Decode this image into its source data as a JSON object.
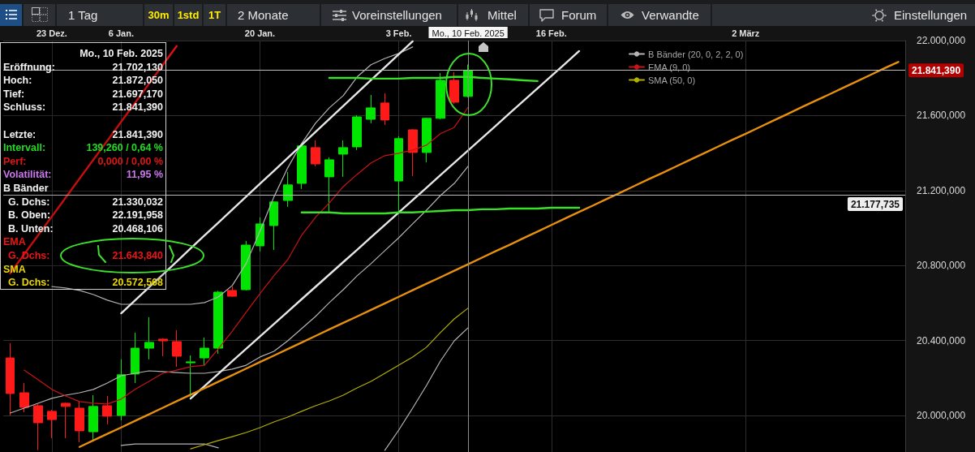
{
  "chart_data": [
    {
      "type": "other",
      "annotations": [
        "1 Tag",
        "30m",
        "1std",
        "1T",
        "2 Monate",
        "Voreinstellungen",
        "Mittel",
        "Forum",
        "Verwandte",
        "Einstellungen"
      ]
    },
    {
      "type": "candlestick",
      "categories": [
        null,
        null,
        null,
        "23 Dez.",
        null,
        null,
        null,
        null,
        "6 Jan.",
        null,
        null,
        null,
        null,
        null,
        null,
        null,
        null,
        null,
        "20 Jan.",
        null,
        null,
        null,
        null,
        null,
        null,
        null,
        null,
        null,
        "3 Feb.",
        null,
        null,
        null,
        null,
        null,
        null,
        null,
        null,
        null,
        null,
        "16 Feb.",
        null,
        null,
        null,
        null,
        null,
        null,
        null,
        null,
        null,
        null,
        null,
        null,
        null,
        "2 März",
        null,
        null,
        null,
        null,
        null,
        null,
        null,
        null,
        null,
        null,
        null
      ],
      "ohlc": [
        [
          20307,
          20385,
          20000,
          20117
        ],
        [
          20121,
          20173,
          20017,
          20043
        ],
        [
          20052,
          20060,
          19815,
          19961
        ],
        [
          20022,
          20030,
          19879,
          19978
        ],
        [
          20065,
          20068,
          19879,
          20048
        ],
        [
          20039,
          20074,
          19857,
          19918
        ],
        [
          19913,
          20108,
          19866,
          20048
        ],
        [
          20052,
          20104,
          19952,
          19996
        ],
        [
          20000,
          20299,
          19974,
          20217
        ],
        [
          20221,
          20442,
          20173,
          20359
        ],
        [
          20359,
          20524,
          20299,
          20390
        ],
        [
          20407,
          20411,
          20316,
          20398
        ],
        [
          20394,
          20455,
          20260,
          20316
        ],
        [
          20281,
          20320,
          20100,
          20286
        ],
        [
          20307,
          20416,
          20268,
          20359
        ],
        [
          20359,
          20665,
          20329,
          20658
        ],
        [
          20667,
          20688,
          20633,
          20636
        ],
        [
          20671,
          20931,
          20667,
          20909
        ],
        [
          20905,
          21057,
          20875,
          21022
        ],
        [
          21013,
          21143,
          20883,
          21139
        ],
        [
          21147,
          21299,
          21113,
          21230
        ],
        [
          21238,
          21446,
          21208,
          21438
        ],
        [
          21429,
          21468,
          21329,
          21342
        ],
        [
          21273,
          21377,
          21083,
          21364
        ],
        [
          21394,
          21468,
          21273,
          21429
        ],
        [
          21433,
          21602,
          21416,
          21593
        ],
        [
          21580,
          21710,
          21559,
          21641
        ],
        [
          21667,
          21719,
          21550,
          21576
        ],
        [
          21251,
          21490,
          21083,
          21477
        ],
        [
          21524,
          21528,
          21277,
          21403
        ],
        [
          21403,
          21589,
          21351,
          21585
        ],
        [
          21585,
          21827,
          21580,
          21788
        ],
        [
          21788,
          21832,
          21663,
          21671
        ],
        [
          21702.13,
          21872.05,
          21697.17,
          21841.39
        ],
        null,
        null,
        null,
        null,
        null,
        null,
        null,
        null,
        null,
        null,
        null,
        null,
        null,
        null,
        null,
        null,
        null,
        null,
        null,
        null,
        null,
        null,
        null,
        null,
        null,
        null,
        null,
        null,
        null,
        null,
        null
      ],
      "colors": [
        "#ff1a1a",
        "#ff1a1a",
        "#ff1a1a",
        "#ff1a1a",
        "#ff1a1a",
        "#ff1a1a",
        "#00e600",
        "#ff1a1a",
        "#00e600",
        "#00e600",
        "#00e600",
        "#ff1a1a",
        "#ff1a1a",
        "#00e600",
        "#00e600",
        "#00e600",
        "#ff1a1a",
        "#00e600",
        "#00e600",
        "#00e600",
        "#00e600",
        "#00e600",
        "#ff1a1a",
        "#00e600",
        "#00e600",
        "#00e600",
        "#00e600",
        "#ff1a1a",
        "#00e600",
        "#ff1a1a",
        "#00e600",
        "#00e600",
        "#ff1a1a",
        "#00e600",
        null,
        null,
        null,
        null,
        null,
        null,
        null,
        null,
        null,
        null,
        null,
        null,
        null,
        null,
        null,
        null,
        null,
        null,
        null,
        null,
        null,
        null,
        null,
        null,
        null,
        null,
        null,
        null,
        null,
        null,
        null
      ],
      "series": [
        {
          "type": "line",
          "name": "B Bänder (20, 0, 2, 2, 0)",
          "color": "#b4b4b4",
          "values": [
            null,
            null,
            null,
            20688,
            20680,
            20667,
            20645,
            20615,
            20593,
            20593,
            20593,
            20593,
            20593,
            20593,
            20602,
            20632,
            20693,
            20810,
            20983,
            21165,
            21321,
            21451,
            21559,
            21641,
            21706,
            21806,
            21871,
            21905,
            21931,
            21966,
            null,
            null,
            null,
            null,
            null,
            null,
            null,
            null,
            null,
            null,
            null,
            null,
            null,
            null,
            null,
            null,
            null,
            null,
            null,
            null,
            null,
            null,
            null,
            null,
            null,
            null,
            null,
            null,
            null,
            null,
            null,
            null,
            null,
            null,
            null
          ]
        },
        {
          "type": "line",
          "color": "#b4b4b4",
          "values": [
            20013,
            20039,
            20065,
            20091,
            20108,
            20121,
            20139,
            20173,
            20212,
            20225,
            20238,
            20234,
            20229,
            20225,
            20225,
            20234,
            20247,
            20268,
            20312,
            20342,
            20398,
            20463,
            20528,
            20602,
            20671,
            20745,
            20810,
            20879,
            20948,
            21022,
            21095,
            21173,
            21238,
            21330,
            null,
            null,
            null,
            null,
            null,
            null,
            null,
            null,
            null,
            null,
            null,
            null,
            null,
            null,
            null,
            null,
            null,
            null,
            null,
            null,
            null,
            null,
            null,
            null,
            null,
            null,
            null,
            null,
            null,
            null,
            null
          ]
        },
        {
          "type": "line",
          "color": "#b4b4b4",
          "values": [
            null,
            null,
            null,
            null,
            null,
            null,
            null,
            null,
            19840,
            19848,
            19848,
            19848,
            19848,
            19848,
            19848,
            19827,
            null,
            null,
            null,
            null,
            null,
            null,
            null,
            null,
            null,
            null,
            null,
            19814,
            19922,
            20039,
            20160,
            20290,
            20398,
            20468,
            null,
            null,
            null,
            null,
            null,
            null,
            null,
            null,
            null,
            null,
            null,
            null,
            null,
            null,
            null,
            null,
            null,
            null,
            null,
            null,
            null,
            null,
            null,
            null,
            null,
            null,
            null,
            null,
            null,
            null,
            null
          ]
        },
        {
          "type": "line",
          "name": "EMA (9, 0)",
          "color": "#c81414",
          "values": [
            null,
            20242,
            20191,
            20139,
            20104,
            20074,
            20065,
            20061,
            20087,
            20139,
            20182,
            20225,
            20242,
            20260,
            20268,
            20355,
            20450,
            20550,
            20650,
            20745,
            20831,
            20961,
            21057,
            21134,
            21221,
            21286,
            21347,
            21386,
            21399,
            21416,
            21442,
            21503,
            21537,
            21644,
            null,
            null,
            null,
            null,
            null,
            null,
            null,
            null,
            null,
            null,
            null,
            null,
            null,
            null,
            null,
            null,
            null,
            null,
            null,
            null,
            null,
            null,
            null,
            null,
            null,
            null,
            null,
            null,
            null,
            null,
            null
          ]
        },
        {
          "type": "line",
          "name": "SMA (50, 0)",
          "color": "#b3b000",
          "values": [
            null,
            null,
            null,
            null,
            null,
            null,
            null,
            null,
            null,
            null,
            null,
            null,
            null,
            19822,
            19844,
            19866,
            19887,
            19909,
            19935,
            19965,
            19991,
            20022,
            20052,
            20078,
            20108,
            20147,
            20182,
            20225,
            20268,
            20312,
            20364,
            20442,
            20515,
            20573,
            null,
            null,
            null,
            null,
            null,
            null,
            null,
            null,
            null,
            null,
            null,
            null,
            null,
            null,
            null,
            null,
            null,
            null,
            null,
            null,
            null,
            null,
            null,
            null,
            null,
            null,
            null,
            null,
            null,
            null,
            null
          ]
        },
        {
          "type": "line",
          "color": "#e6e6e6",
          "values": [
            null,
            null,
            null,
            null,
            null,
            null,
            null,
            null,
            20545,
            20614,
            20683,
            20752,
            20821,
            20891,
            20960,
            21029,
            21098,
            21167,
            21236,
            21305,
            21374,
            21443,
            21512,
            21582,
            21651,
            21720,
            21789,
            21858,
            21927,
            21996,
            null,
            null,
            null,
            null,
            null,
            null,
            null,
            null,
            null,
            null,
            null,
            null,
            null,
            null,
            null,
            null,
            null,
            null,
            null,
            null,
            null,
            null,
            null,
            null,
            null,
            null,
            null,
            null,
            null,
            null,
            null,
            null,
            null,
            null,
            null
          ]
        },
        {
          "type": "line",
          "color": "#e6e6e6",
          "values": [
            null,
            null,
            null,
            null,
            null,
            null,
            null,
            null,
            null,
            null,
            null,
            null,
            null,
            20090,
            20156,
            20222,
            20289,
            20355,
            20421,
            20487,
            20553,
            20620,
            20686,
            20752,
            20818,
            20884,
            20951,
            21017,
            21083,
            21149,
            21215,
            21282,
            21348,
            21414,
            21480,
            21546,
            21613,
            21679,
            21745,
            21811,
            21877,
            21944,
            null,
            null,
            null,
            null,
            null,
            null,
            null,
            null,
            null,
            null,
            null,
            null,
            null,
            null,
            null,
            null,
            null,
            null,
            null,
            null,
            null,
            null,
            null
          ]
        },
        {
          "type": "line",
          "color": "#e8900c",
          "values": [
            null,
            null,
            null,
            null,
            null,
            19832,
            19867,
            19902,
            19936,
            19971,
            20006,
            20041,
            20076,
            20111,
            20145,
            20180,
            20215,
            20250,
            20285,
            20319,
            20354,
            20389,
            20424,
            20459,
            20494,
            20528,
            20563,
            20598,
            20633,
            20668,
            20703,
            20737,
            20772,
            20807,
            20842,
            20877,
            20911,
            20946,
            20981,
            21016,
            21051,
            21086,
            21120,
            21155,
            21190,
            21225,
            21260,
            21294,
            21329,
            21364,
            21399,
            21434,
            21469,
            21503,
            21538,
            21573,
            21608,
            21643,
            21678,
            21712,
            21747,
            21782,
            21817,
            21852,
            21886
          ]
        },
        {
          "type": "line",
          "color": "#e01010",
          "values": [
            20758,
            20859,
            20960,
            21061,
            21162,
            21264,
            21365,
            21466,
            21567,
            21668,
            21769,
            21870,
            21971,
            null,
            null,
            null,
            null,
            null,
            null,
            null,
            null,
            null,
            null,
            null,
            null,
            null,
            null,
            null,
            null,
            null,
            null,
            null,
            null,
            null,
            null,
            null,
            null,
            null,
            null,
            null,
            null,
            null,
            null,
            null,
            null,
            null,
            null,
            null,
            null,
            null,
            null,
            null,
            null,
            null,
            null,
            null,
            null,
            null,
            null,
            null,
            null,
            null,
            null,
            null,
            null
          ]
        },
        {
          "type": "line",
          "color": "#3be02a",
          "values": [
            null,
            null,
            null,
            null,
            null,
            null,
            null,
            null,
            null,
            null,
            null,
            null,
            null,
            null,
            null,
            null,
            null,
            null,
            null,
            null,
            null,
            null,
            null,
            21801,
            21801,
            21801,
            21797,
            21797,
            21797,
            21801,
            21801,
            21801,
            21806,
            21806,
            21801,
            21797,
            21793,
            21788,
            21784,
            null,
            null,
            null,
            null,
            null,
            null,
            null,
            null,
            null,
            null,
            null,
            null,
            null,
            null,
            null,
            null,
            null,
            null,
            null,
            null,
            null,
            null,
            null,
            null,
            null,
            null
          ]
        },
        {
          "type": "line",
          "color": "#3be02a",
          "values": [
            null,
            null,
            null,
            null,
            null,
            null,
            null,
            null,
            null,
            null,
            null,
            null,
            null,
            null,
            null,
            null,
            null,
            null,
            null,
            null,
            null,
            21083,
            21083,
            21083,
            21078,
            21078,
            21078,
            21078,
            21083,
            21083,
            21087,
            21091,
            21095,
            21095,
            21100,
            21100,
            21104,
            21104,
            21104,
            21108,
            21108,
            21108,
            null,
            null,
            null,
            null,
            null,
            null,
            null,
            null,
            null,
            null,
            null,
            null,
            null,
            null,
            null,
            null,
            null,
            null,
            null,
            null,
            null,
            null,
            null
          ]
        }
      ],
      "ylim": [
        19805,
        22000
      ],
      "yticks": [
        {
          "value": 20000,
          "label": "20.000,000"
        },
        {
          "value": 20400,
          "label": "20.400,000"
        },
        {
          "value": 20800,
          "label": "20.800,000"
        },
        {
          "value": 21200,
          "label": "21.200,000"
        },
        {
          "value": 21600,
          "label": "21.600,000"
        },
        {
          "value": 22000,
          "label": "22.000,000"
        }
      ],
      "grid": true,
      "legend": "top",
      "marker": "none",
      "ref_lines": [
        {
          "axis": "y",
          "value": 21841.39,
          "label": "21.841,390",
          "color": "#bdbdbd"
        },
        {
          "axis": "y",
          "value": 21177.735,
          "label": "21.177,735",
          "color": "#bdbdbd"
        },
        {
          "axis": "x",
          "label": "Mo., 10 Feb. 2025",
          "color": "#8c8c8c"
        }
      ],
      "annotations": [
        "Mo., 10 Feb. 2025",
        "Eröffnung:",
        "21.702,130",
        "Hoch:",
        "21.872,050",
        "Tief:",
        "21.697,170",
        "Schluss:",
        "21.841,390",
        "Letzte:",
        "21.841,390",
        "Intervall:",
        "139,260 / 0,64 %",
        "Perf:",
        "0,000 / 0,00 %",
        "Volatilität:",
        "11,95 %",
        "B Bänder",
        "G. Dchs:",
        "21.330,032",
        "B. Oben:",
        "22.191,958",
        "B. Unten:",
        "20.468,106",
        "EMA",
        "G. Dchs:",
        "21.643,840",
        "SMA",
        "G. Dchs:",
        "20.572,568"
      ]
    }
  ]
}
